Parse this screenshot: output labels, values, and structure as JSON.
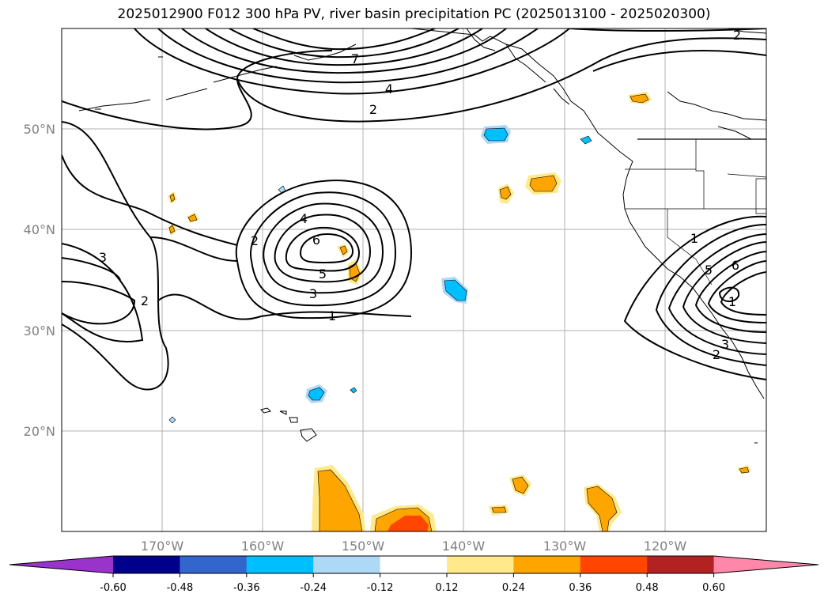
{
  "title": "2025012900 F012 300 hPa PV, river basin precipitation PC (2025013100 - 2025020300)",
  "map": {
    "lat_ticks": [
      "50°N",
      "40°N",
      "30°N",
      "20°N"
    ],
    "lon_ticks": [
      "170°W",
      "160°W",
      "150°W",
      "140°W",
      "130°W",
      "120°W"
    ],
    "pv_contour_labels": [
      "7",
      "4",
      "2",
      "2",
      "3",
      "2",
      "4",
      "6",
      "5",
      "3",
      "1",
      "2",
      "1",
      "5",
      "6",
      "1",
      "3",
      "2"
    ]
  },
  "colorbar": {
    "levels": [
      "-0.60",
      "-0.48",
      "-0.36",
      "-0.24",
      "-0.12",
      "0.12",
      "0.24",
      "0.36",
      "0.48",
      "0.60"
    ],
    "colors": [
      "#9933cc",
      "#00008b",
      "#3366cc",
      "#00bfff",
      "#add8f6",
      "#ffffff",
      "#ffe98a",
      "#ffa500",
      "#ff4500",
      "#b22222",
      "#ff88aa"
    ]
  }
}
